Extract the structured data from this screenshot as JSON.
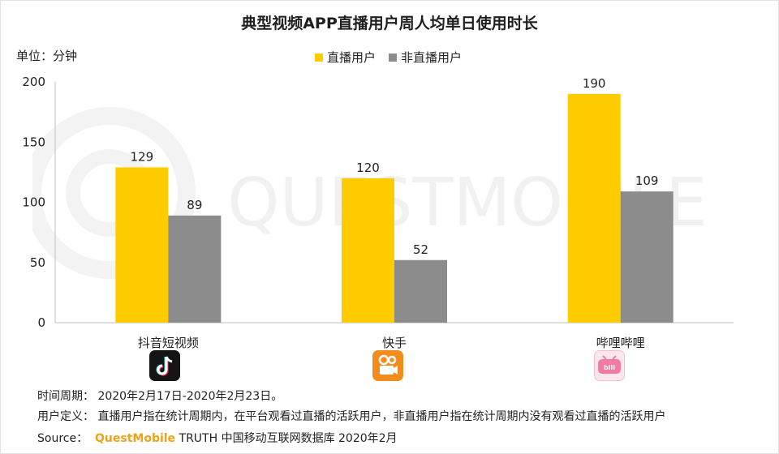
{
  "chart_data": {
    "type": "bar",
    "title": "典型视频APP直播用户周人均单日使用时长",
    "unit_label": "单位：分钟",
    "categories": [
      "抖音短视频",
      "快手",
      "哔哩哔哩"
    ],
    "series": [
      {
        "name": "直播用户",
        "values": [
          129,
          120,
          190
        ],
        "color": "#FFCC00"
      },
      {
        "name": "非直播用户",
        "values": [
          89,
          52,
          109
        ],
        "color": "#8C8C8C"
      }
    ],
    "ylim": [
      0,
      200
    ],
    "yticks": [
      0,
      50,
      100,
      150,
      200
    ],
    "grid": false,
    "legend": "top-center"
  },
  "icons": [
    "tiktok-icon",
    "kuaishou-icon",
    "bilibili-icon"
  ],
  "watermark": "QUESTMOBILE",
  "notes": {
    "period": "时间周期：  2020年2月17日-2020年2月23日。",
    "definition": "用户定义：  直播用户指在统计周期内，在平台观看过直播的活跃用户，非直播用户指在统计周期内没有观看过直播的活跃用户",
    "source_label": "Source：",
    "source_brand": "QuestMobile",
    "source_rest": " TRUTH 中国移动互联网数据库 2020年2月"
  }
}
